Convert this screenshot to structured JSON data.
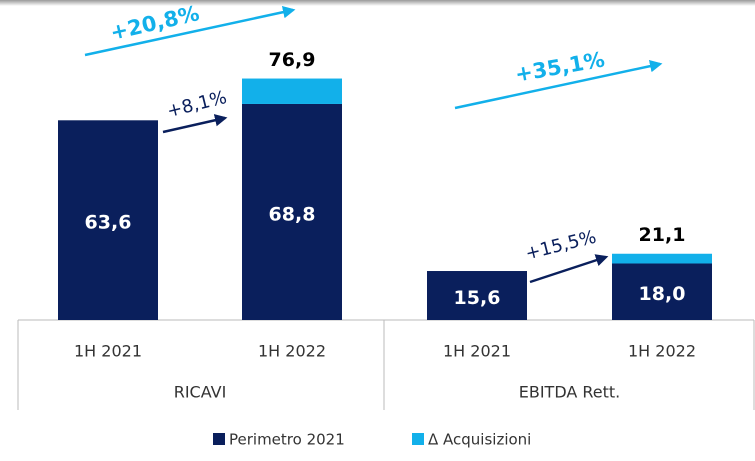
{
  "chart_data": {
    "type": "stacked_bar",
    "categories": [
      "1H 2021",
      "1H 2022",
      "1H 2021",
      "1H 2022"
    ],
    "groups": [
      "RICAVI",
      "EBITDA Rett."
    ],
    "series": [
      {
        "name": "Perimetro 2021",
        "color": "#0a1f5c",
        "values": [
          63.6,
          68.8,
          15.6,
          18.0
        ],
        "value_labels": [
          "63,6",
          "68,8",
          "15,6",
          "18,0"
        ]
      },
      {
        "name": "Δ Acquisizioni",
        "color": "#12b0ea",
        "values": [
          null,
          8.1,
          null,
          3.1
        ]
      }
    ],
    "totals": [
      null,
      76.9,
      null,
      21.1
    ],
    "total_labels": [
      null,
      "76,9",
      null,
      "21,1"
    ],
    "annotations": [
      "+20,8%",
      "+8,1%",
      "+35,1%",
      "+15,5%"
    ],
    "legend": "bottom"
  }
}
